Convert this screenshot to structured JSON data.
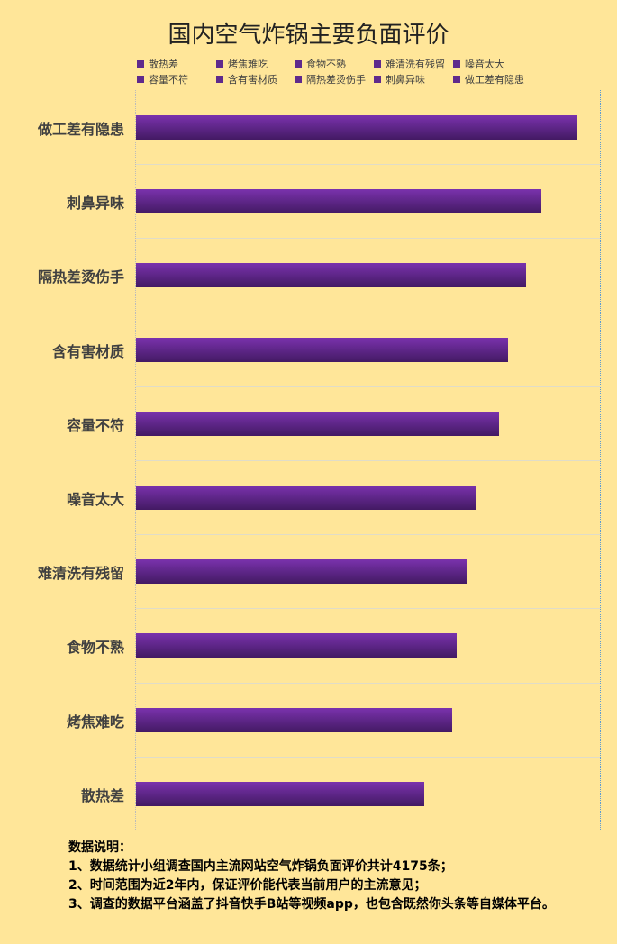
{
  "chart_data": {
    "type": "bar",
    "orientation": "horizontal",
    "title": "国内空气炸锅主要负面评价",
    "categories": [
      "做工差有隐患",
      "刺鼻异味",
      "隔热差烫伤手",
      "含有害材质",
      "容量不符",
      "噪音太大",
      "难清洗有残留",
      "食物不熟",
      "烤焦难吃",
      "散热差"
    ],
    "values": [
      517,
      474,
      457,
      435,
      425,
      397,
      387,
      375,
      370,
      337
    ],
    "xlim": [
      0,
      543
    ],
    "legend": [
      "散热差",
      "烤焦难吃",
      "食物不熟",
      "难清洗有残留",
      "噪音太大",
      "容量不符",
      "含有害材质",
      "隔热差烫伤手",
      "刺鼻异味",
      "做工差有隐患"
    ],
    "legend_position": "top",
    "grid": "horizontal separators",
    "bar_color": "#6a2c9a"
  },
  "notes": {
    "heading": "数据说明：",
    "lines": [
      "1、数据统计小组调查国内主流网站空气炸锅负面评价共计4175条；",
      "2、时间范围为近2年内，保证评价能代表当前用户的主流意见；",
      "3、调查的数据平台涵盖了抖音快手B站等视频app，也包含既然你头条等自媒体平台。"
    ]
  }
}
